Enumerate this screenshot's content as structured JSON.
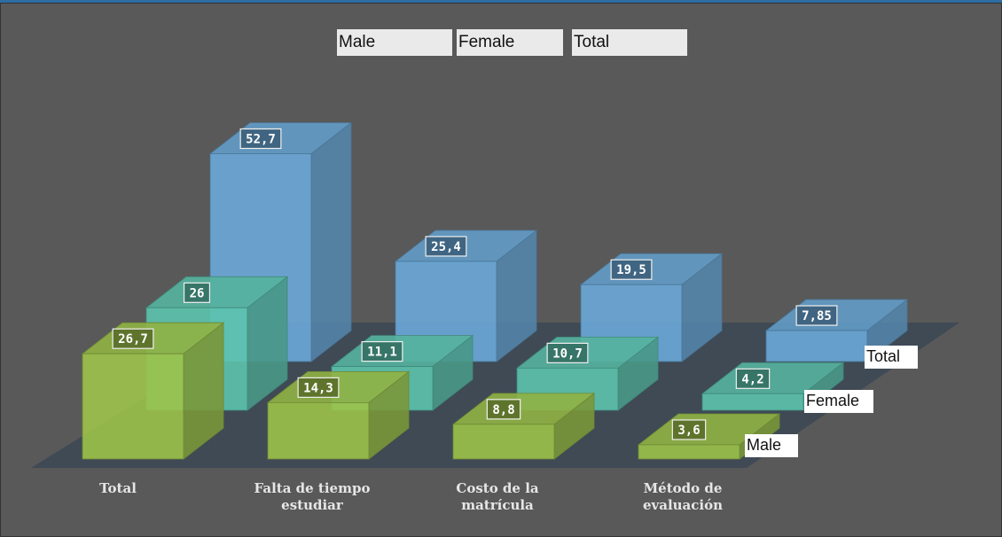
{
  "chart_data": {
    "type": "bar3d",
    "categories": [
      "Total",
      "Falta de tiempo estudiar",
      "Costo de la matrícula",
      "Método de evaluación"
    ],
    "series": [
      {
        "name": "Male",
        "color": "#9cc24a",
        "values": [
          26.7,
          14.3,
          8.8,
          3.6
        ],
        "value_labels": [
          "26,7",
          "14,3",
          "8,8",
          "3,6"
        ]
      },
      {
        "name": "Female",
        "color": "#5cc3ad",
        "values": [
          26,
          11.1,
          10.7,
          4.2
        ],
        "value_labels": [
          "26",
          "11,1",
          "10,7",
          "4,2"
        ]
      },
      {
        "name": "Total",
        "color": "#6aa9d8",
        "values": [
          52.7,
          25.4,
          19.5,
          7.85
        ],
        "value_labels": [
          "52,7",
          "25,4",
          "19,5",
          "7,85"
        ]
      }
    ]
  }
}
